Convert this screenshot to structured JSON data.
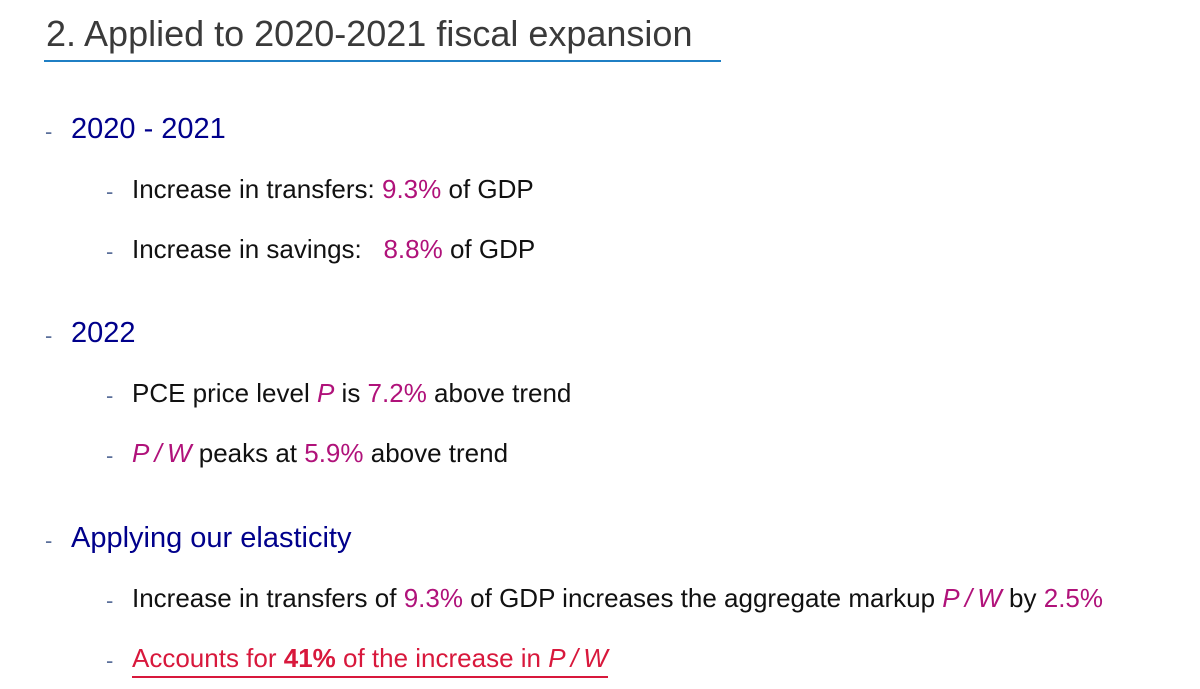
{
  "title": "2. Applied to 2020-2021 fiscal expansion",
  "dash": "-",
  "sections": [
    {
      "heading": "2020 - 2021",
      "items": [
        {
          "a": "Increase in transfers: ",
          "b": "9.3%",
          "c": " of GDP"
        },
        {
          "a": "Increase in savings:   ",
          "b": "8.8%",
          "c": " of GDP"
        }
      ]
    },
    {
      "heading": "2022",
      "items": [
        {
          "a": "PCE price level ",
          "b": "P",
          "c": " is ",
          "d": "7.2%",
          "e": " above trend"
        },
        {
          "a": "P / W",
          "b": " peaks at ",
          "c": "5.9%",
          "d": " above trend"
        }
      ]
    },
    {
      "heading": "Applying our elasticity",
      "items": [
        {
          "a": "Increase in transfers of ",
          "b": "9.3%",
          "c": " of GDP increases the aggregate markup ",
          "d": "P / W",
          "e": " by ",
          "f": "2.5%"
        },
        {
          "a": "Accounts for ",
          "b": "41%",
          "c": " of the increase in ",
          "d": "P / W"
        }
      ]
    }
  ]
}
